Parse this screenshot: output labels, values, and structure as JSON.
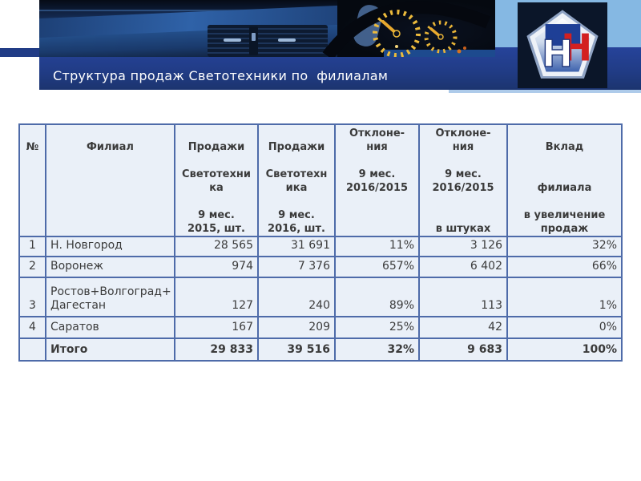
{
  "slide": {
    "title": "Структура продаж Светотехники по  филиалам"
  },
  "logo": {
    "letter_left": "Н",
    "letter_right": "Н"
  },
  "colors": {
    "navy": "#213C86",
    "light_blue": "#85B8E3",
    "logo_background": "#0B1629",
    "logo_red": "#D32020",
    "table_border": "#4E6BA9",
    "table_background": "#EAF0F8",
    "table_text": "#3B3B3B"
  },
  "table": {
    "header": [
      {
        "label": "№",
        "lines": [
          "",
          "№"
        ]
      },
      {
        "label": "Филиал",
        "lines": [
          "",
          "Филиал"
        ]
      },
      {
        "label": "Продажи Светотехника 9 мес. 2015, шт.",
        "lines": [
          "",
          "Продажи",
          "",
          "Светотехни",
          "ка",
          "",
          "9 мес.",
          "2015, шт."
        ]
      },
      {
        "label": "Продажи Светотехника 9 мес. 2016, шт.",
        "lines": [
          "",
          "Продажи",
          "",
          "Светотехн",
          "ика",
          "",
          "9 мес.",
          "2016, шт."
        ]
      },
      {
        "label": "Отклонения 9 мес. 2016/2015",
        "lines": [
          "Отклоне-",
          "ния",
          "",
          "9 мес.",
          "2016/2015"
        ]
      },
      {
        "label": "Отклонения 9 мес. 2016/2015 в штуках",
        "lines": [
          "Отклоне-",
          "ния",
          "",
          "9 мес.",
          "2016/2015",
          "",
          "",
          "в штуках"
        ]
      },
      {
        "label": "Вклад филиала в увеличение продаж",
        "lines": [
          "",
          "Вклад",
          "",
          "",
          "филиала",
          "",
          "в увеличение",
          "продаж"
        ]
      }
    ],
    "rows": [
      {
        "cells": [
          "1",
          "Н. Новгород",
          "28 565",
          "31 691",
          "11%",
          "3 126",
          "32%"
        ],
        "bold": false
      },
      {
        "cells": [
          "2",
          "Воронеж",
          "974",
          "7 376",
          "657%",
          "6 402",
          "66%"
        ],
        "bold": false
      },
      {
        "cells": [
          "3",
          "Ростов+Волгоград+\nДагестан",
          "127",
          "240",
          "89%",
          "113",
          "1%"
        ],
        "bold": false
      },
      {
        "cells": [
          "4",
          "Саратов",
          "167",
          "209",
          "25%",
          "42",
          "0%"
        ],
        "bold": false
      },
      {
        "cells": [
          "",
          "Итого",
          "29 833",
          "39 516",
          "32%",
          "9 683",
          "100%"
        ],
        "bold": true
      }
    ]
  }
}
